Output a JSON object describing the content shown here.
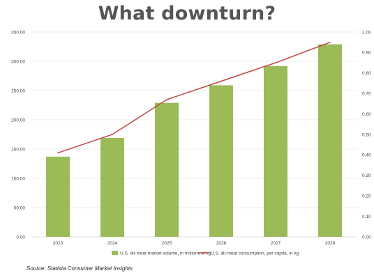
{
  "title": "What downturn?",
  "source": "Source: Statista Consumer Market Insights",
  "colors": {
    "bar": "#9bbb59",
    "line": "#c0504d",
    "grid": "#dcdcdc",
    "axis": "#bfbfbf"
  },
  "chart_data": {
    "type": "bar",
    "title": "What downturn?",
    "categories": [
      "2023",
      "2024",
      "2025",
      "2026",
      "2027",
      "2028"
    ],
    "series": [
      {
        "name": "U.S. alt-meat market volume, in millions of kg",
        "type": "bar",
        "axis": "left",
        "values": [
          137,
          169,
          229,
          259,
          292,
          329
        ]
      },
      {
        "name": "U.S. alt-meat consumption, per capita, in kg",
        "type": "line",
        "axis": "right",
        "values": [
          0.41,
          0.5,
          0.67,
          0.76,
          0.85,
          0.95
        ]
      }
    ],
    "y_left": {
      "min": 0,
      "max": 350,
      "step": 50,
      "tick_labels": [
        "0.00",
        "50.00",
        "100.00",
        "150.00",
        "200.00",
        "250.00",
        "300.00",
        "350.00"
      ]
    },
    "y_right": {
      "min": 0,
      "max": 1,
      "step": 0.1,
      "tick_labels": [
        "0.00",
        "0.10",
        "0.20",
        "0.30",
        "0.40",
        "0.50",
        "0.60",
        "0.70",
        "0.80",
        "0.90",
        "1.00"
      ]
    },
    "grid": true,
    "legend_position": "bottom"
  }
}
